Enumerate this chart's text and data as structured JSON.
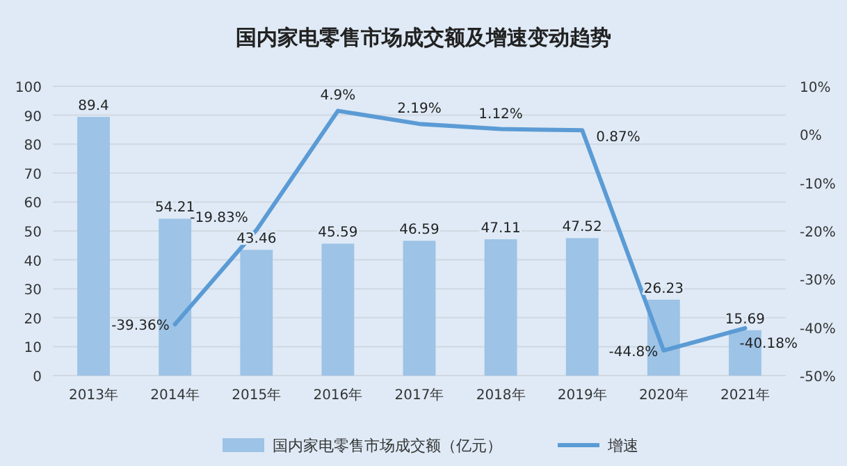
{
  "chart_data": {
    "type": "bar",
    "title": "国内家电零售市场成交额及增速变动趋势",
    "categories": [
      "2013年",
      "2014年",
      "2015年",
      "2016年",
      "2017年",
      "2018年",
      "2019年",
      "2020年",
      "2021年"
    ],
    "series": [
      {
        "name": "国内家电零售市场成交额（亿元）",
        "color": "#9dc3e6",
        "values": [
          89.4,
          54.21,
          43.46,
          45.59,
          46.59,
          47.11,
          47.52,
          26.23,
          15.69
        ],
        "value_labels": [
          "89.4",
          "54.21",
          "43.46",
          "45.59",
          "46.59",
          "47.11",
          "47.52",
          "26.23",
          "15.69"
        ]
      },
      {
        "name": "增速",
        "type": "line",
        "axis": "y2",
        "color": "#5b9bd5",
        "values": [
          null,
          -39.36,
          -19.83,
          4.9,
          2.19,
          1.12,
          0.87,
          -44.8,
          -40.18
        ],
        "value_labels": [
          null,
          "-39.36%",
          "-19.83%",
          "4.9%",
          "2.19%",
          "1.12%",
          "0.87%",
          "-44.8%",
          "-40.18%"
        ]
      }
    ],
    "ylim": [
      0,
      100
    ],
    "yticks": [
      0,
      10,
      20,
      30,
      40,
      50,
      60,
      70,
      80,
      90,
      100
    ],
    "y2lim": [
      -50,
      10
    ],
    "y2ticks": [
      {
        "value": -50,
        "label": "-50%"
      },
      {
        "value": -40,
        "label": "-40%"
      },
      {
        "value": -30,
        "label": "-30%"
      },
      {
        "value": -20,
        "label": "-20%"
      },
      {
        "value": -10,
        "label": "-10%"
      },
      {
        "value": 0,
        "label": "0%"
      },
      {
        "value": 10,
        "label": "10%"
      }
    ],
    "grid": "y",
    "legend": "bottom",
    "marker": "none",
    "line_style": "solid"
  }
}
